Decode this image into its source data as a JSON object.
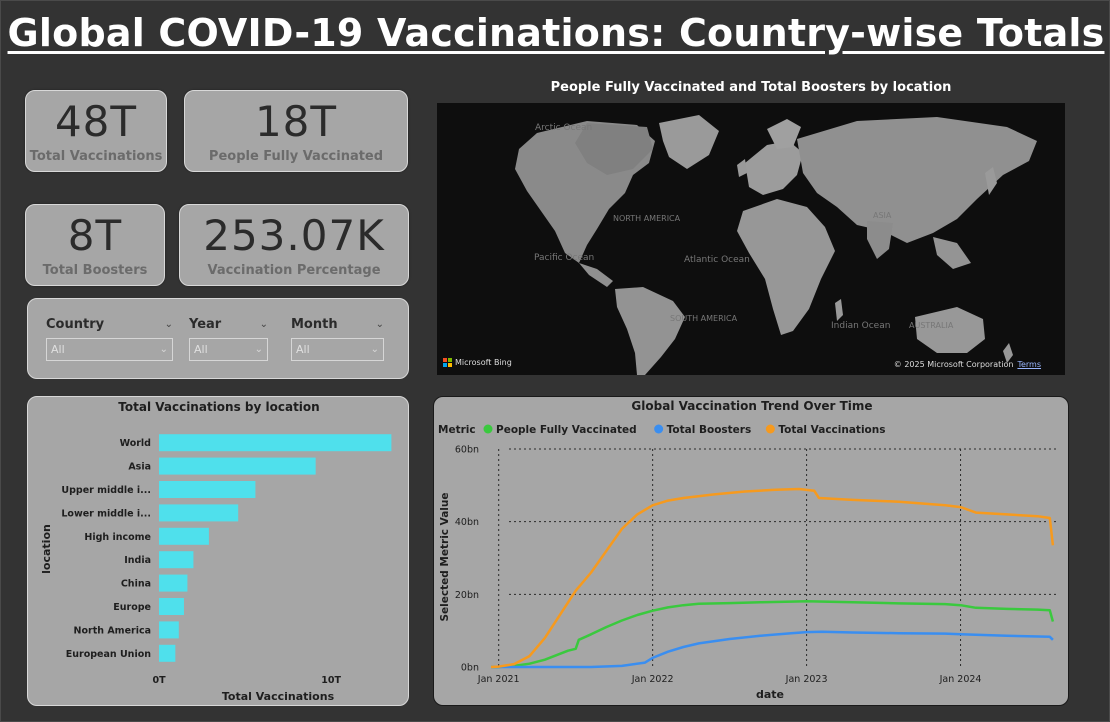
{
  "page": {
    "title": "Global COVID-19 Vaccinations: Country-wise Totals"
  },
  "kpis": {
    "total_vaccinations": {
      "value": "48T",
      "label": "Total Vaccinations"
    },
    "people_fully_vaccinated": {
      "value": "18T",
      "label": "People Fully Vaccinated"
    },
    "total_boosters": {
      "value": "8T",
      "label": "Total Boosters"
    },
    "vaccination_percentage": {
      "value": "253.07K",
      "label": "Vaccination Percentage"
    }
  },
  "slicers": [
    {
      "label": "Country",
      "selected": "All"
    },
    {
      "label": "Year",
      "selected": "All"
    },
    {
      "label": "Month",
      "selected": "All"
    }
  ],
  "map": {
    "title": "People Fully Vaccinated and Total Boosters by location",
    "labels": [
      "Arctic Ocean",
      "NORTH AMERICA",
      "ASIA",
      "Pacific Ocean",
      "Atlantic Ocean",
      "SOUTH AMERICA",
      "Indian Ocean",
      "AUSTRALIA"
    ],
    "attribution": "Microsoft Bing",
    "copyright": "© 2025 Microsoft Corporation",
    "terms": "Terms"
  },
  "chart_data": [
    {
      "type": "bar",
      "title": "Total Vaccinations by location",
      "xlabel": "Total Vaccinations",
      "ylabel": "location",
      "orientation": "horizontal",
      "categories": [
        "World",
        "Asia",
        "Upper middle i...",
        "Lower middle i...",
        "High income",
        "India",
        "China",
        "Europe",
        "North America",
        "European Union"
      ],
      "values": [
        13.5,
        9.1,
        5.6,
        4.6,
        2.9,
        2.0,
        1.65,
        1.45,
        1.15,
        0.95
      ],
      "xlim": [
        0,
        14
      ],
      "xticks": [
        {
          "v": 0,
          "label": "0T"
        },
        {
          "v": 10,
          "label": "10T"
        }
      ],
      "units": "T",
      "color": "#4fe0ec"
    },
    {
      "type": "line",
      "title": "Global Vaccination Trend Over Time",
      "xlabel": "date",
      "ylabel": "Selected Metric Value",
      "legend_title": "Metric",
      "x_domain": [
        2020.95,
        2024.62
      ],
      "xticks": [
        {
          "v": 2021.0,
          "label": "Jan 2021"
        },
        {
          "v": 2022.0,
          "label": "Jan 2022"
        },
        {
          "v": 2023.0,
          "label": "Jan 2023"
        },
        {
          "v": 2024.0,
          "label": "Jan 2024"
        }
      ],
      "ylim": [
        0,
        60
      ],
      "yticks": [
        {
          "v": 0,
          "label": "0bn"
        },
        {
          "v": 20,
          "label": "20bn"
        },
        {
          "v": 40,
          "label": "40bn"
        },
        {
          "v": 60,
          "label": "60bn"
        }
      ],
      "units": "bn",
      "series": [
        {
          "name": "People Fully Vaccinated",
          "color": "#3ac93e",
          "points": [
            [
              2020.95,
              0
            ],
            [
              2021.0,
              0
            ],
            [
              2021.1,
              0.3
            ],
            [
              2021.2,
              0.9
            ],
            [
              2021.3,
              2.0
            ],
            [
              2021.45,
              4.5
            ],
            [
              2021.5,
              5.0
            ],
            [
              2021.52,
              7.5
            ],
            [
              2021.6,
              9.0
            ],
            [
              2021.7,
              11.0
            ],
            [
              2021.8,
              12.8
            ],
            [
              2021.9,
              14.3
            ],
            [
              2022.0,
              15.5
            ],
            [
              2022.1,
              16.4
            ],
            [
              2022.2,
              17.0
            ],
            [
              2022.3,
              17.4
            ],
            [
              2022.5,
              17.6
            ],
            [
              2022.7,
              17.8
            ],
            [
              2022.9,
              18.0
            ],
            [
              2023.0,
              18.1
            ],
            [
              2023.3,
              17.8
            ],
            [
              2023.6,
              17.5
            ],
            [
              2023.9,
              17.3
            ],
            [
              2024.0,
              17.0
            ],
            [
              2024.1,
              16.3
            ],
            [
              2024.3,
              16.0
            ],
            [
              2024.5,
              15.8
            ],
            [
              2024.58,
              15.6
            ],
            [
              2024.6,
              12.5
            ]
          ]
        },
        {
          "name": "Total Boosters",
          "color": "#3a8ef0",
          "points": [
            [
              2020.95,
              0
            ],
            [
              2021.6,
              0
            ],
            [
              2021.8,
              0.3
            ],
            [
              2021.95,
              1.2
            ],
            [
              2022.0,
              2.5
            ],
            [
              2022.1,
              4.2
            ],
            [
              2022.2,
              5.5
            ],
            [
              2022.3,
              6.5
            ],
            [
              2022.5,
              7.7
            ],
            [
              2022.7,
              8.6
            ],
            [
              2022.9,
              9.3
            ],
            [
              2023.0,
              9.6
            ],
            [
              2023.1,
              9.7
            ],
            [
              2023.3,
              9.5
            ],
            [
              2023.6,
              9.3
            ],
            [
              2023.9,
              9.2
            ],
            [
              2024.0,
              9.0
            ],
            [
              2024.3,
              8.6
            ],
            [
              2024.58,
              8.3
            ],
            [
              2024.6,
              7.5
            ]
          ]
        },
        {
          "name": "Total Vaccinations",
          "color": "#f69a1e",
          "points": [
            [
              2020.95,
              0
            ],
            [
              2021.0,
              0.1
            ],
            [
              2021.1,
              0.8
            ],
            [
              2021.2,
              3.0
            ],
            [
              2021.3,
              8.0
            ],
            [
              2021.4,
              14.5
            ],
            [
              2021.5,
              21.0
            ],
            [
              2021.6,
              26.0
            ],
            [
              2021.7,
              32.0
            ],
            [
              2021.8,
              38.0
            ],
            [
              2021.9,
              42.0
            ],
            [
              2022.0,
              44.5
            ],
            [
              2022.1,
              45.8
            ],
            [
              2022.2,
              46.5
            ],
            [
              2022.4,
              47.5
            ],
            [
              2022.6,
              48.3
            ],
            [
              2022.8,
              48.8
            ],
            [
              2022.95,
              49.0
            ],
            [
              2023.05,
              48.5
            ],
            [
              2023.08,
              46.5
            ],
            [
              2023.3,
              46.0
            ],
            [
              2023.6,
              45.5
            ],
            [
              2023.9,
              44.5
            ],
            [
              2024.0,
              44.0
            ],
            [
              2024.1,
              42.5
            ],
            [
              2024.3,
              42.0
            ],
            [
              2024.5,
              41.5
            ],
            [
              2024.58,
              41.0
            ],
            [
              2024.6,
              33.5
            ]
          ]
        }
      ]
    }
  ]
}
